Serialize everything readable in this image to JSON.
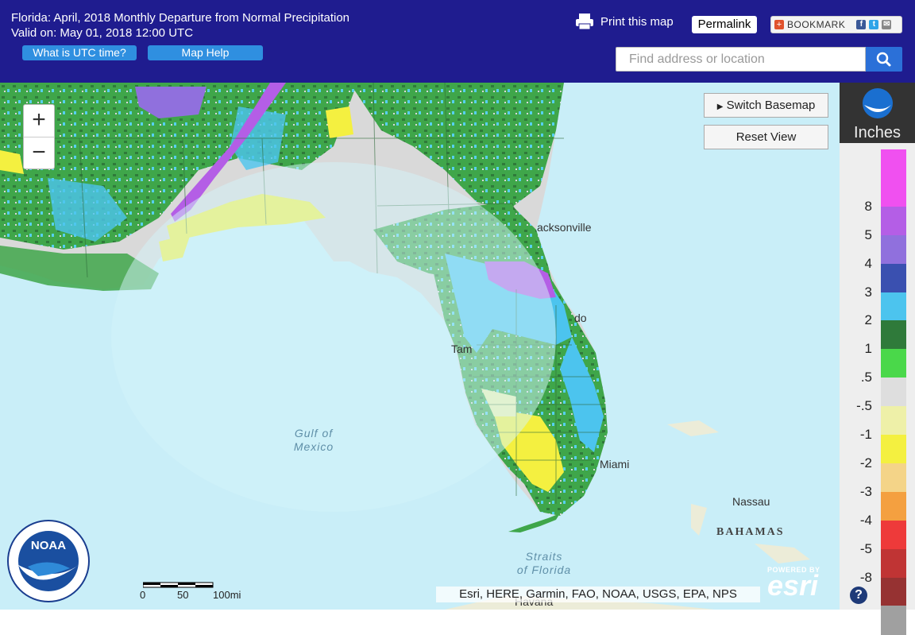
{
  "header": {
    "title_line1": "Florida: April, 2018 Monthly Departure from Normal Precipitation",
    "title_line2": "Valid on: May 01, 2018 12:00 UTC",
    "utc_button": "What is UTC time?",
    "help_button": "Map Help",
    "print_label": "Print this map",
    "permalink_label": "Permalink",
    "bookmark_label": "BOOKMARK"
  },
  "search": {
    "placeholder": "Find address or location"
  },
  "map_controls": {
    "zoom_in": "+",
    "zoom_out": "−",
    "switch_basemap": "Switch Basemap",
    "reset_view": "Reset View"
  },
  "map_labels": {
    "jacksonville": "acksonville",
    "orlando": "do",
    "tampa": "Tam",
    "miami": "Miami",
    "nassau": "Nassau",
    "bahamas": "BAHAMAS",
    "havana": "Havana",
    "gulf_line1": "Gulf of",
    "gulf_line2": "Mexico",
    "straits_line1": "Straits",
    "straits_line2": "of Florida"
  },
  "legend": {
    "unit": "Inches",
    "items": [
      {
        "label": "",
        "color": "#f050f0"
      },
      {
        "label": "8",
        "color": "#f050f0"
      },
      {
        "label": "5",
        "color": "#b45ee6"
      },
      {
        "label": "4",
        "color": "#9070dd"
      },
      {
        "label": "3",
        "color": "#3a50b0"
      },
      {
        "label": "2",
        "color": "#4cc4ee"
      },
      {
        "label": "1",
        "color": "#2f7a3a"
      },
      {
        "label": ".5",
        "color": "#4ad84a"
      },
      {
        "label": "-.5",
        "color": "#dedede"
      },
      {
        "label": "-1",
        "color": "#eef0a8"
      },
      {
        "label": "-2",
        "color": "#f4f040"
      },
      {
        "label": "-3",
        "color": "#f4d488"
      },
      {
        "label": "-4",
        "color": "#f4a040"
      },
      {
        "label": "-5",
        "color": "#ee3a3a"
      },
      {
        "label": "-8",
        "color": "#c03434"
      },
      {
        "label": "",
        "color": "#963232"
      },
      {
        "label": "",
        "color": "#a0a0a0"
      }
    ]
  },
  "scale_bar": {
    "label_0": "0",
    "label_50": "50",
    "label_100": "100mi"
  },
  "attribution": "Esri, HERE, Garmin, FAO, NOAA, USGS, EPA, NPS",
  "esri": {
    "powered_by": "POWERED BY",
    "logo_text": "esri"
  },
  "noaa_logo_text": "NOAA"
}
